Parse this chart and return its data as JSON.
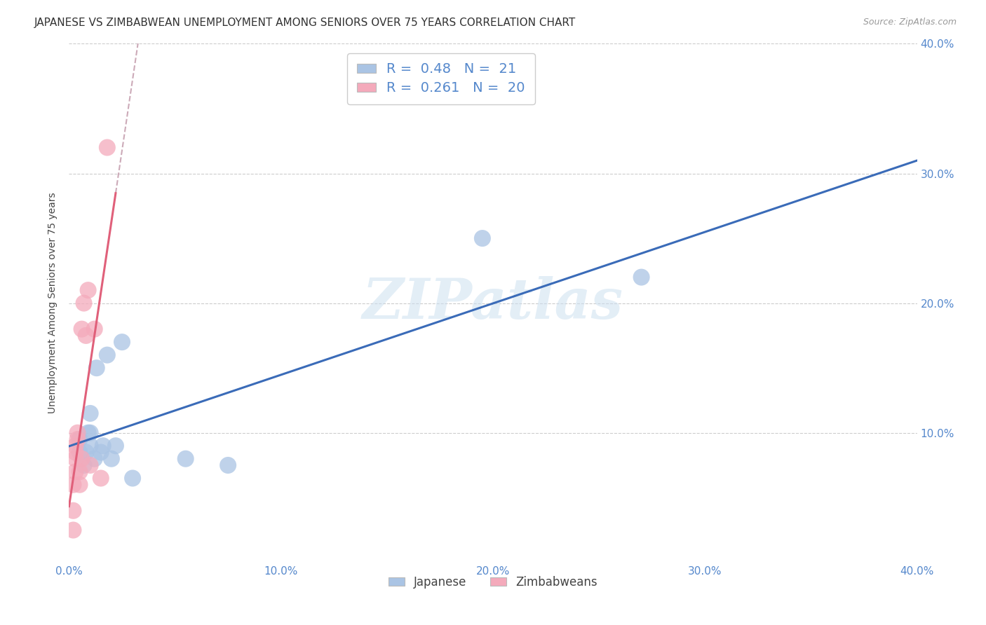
{
  "title": "JAPANESE VS ZIMBABWEAN UNEMPLOYMENT AMONG SENIORS OVER 75 YEARS CORRELATION CHART",
  "source": "Source: ZipAtlas.com",
  "xlabel_japanese": "Japanese",
  "xlabel_zimbabwean": "Zimbabweans",
  "ylabel": "Unemployment Among Seniors over 75 years",
  "xlim": [
    0.0,
    0.4
  ],
  "ylim": [
    0.0,
    0.4
  ],
  "xtick_vals": [
    0.0,
    0.1,
    0.2,
    0.3,
    0.4
  ],
  "xtick_labels": [
    "0.0%",
    "10.0%",
    "20.0%",
    "30.0%",
    "40.0%"
  ],
  "ytick_vals": [
    0.0,
    0.1,
    0.2,
    0.3,
    0.4
  ],
  "ytick_labels_right": [
    "",
    "10.0%",
    "20.0%",
    "30.0%",
    "40.0%"
  ],
  "japanese_R": 0.48,
  "japanese_N": 21,
  "zimbabwean_R": 0.261,
  "zimbabwean_N": 20,
  "japanese_color": "#aac4e4",
  "japanese_line_color": "#3a6bb8",
  "zimbabwean_color": "#f4aabb",
  "zimbabwean_line_color": "#e0607a",
  "zimbabwean_dashed_color": "#ccaab8",
  "japanese_x": [
    0.005,
    0.005,
    0.007,
    0.008,
    0.009,
    0.01,
    0.01,
    0.01,
    0.012,
    0.013,
    0.015,
    0.016,
    0.018,
    0.02,
    0.022,
    0.025,
    0.03,
    0.055,
    0.075,
    0.195,
    0.27
  ],
  "japanese_y": [
    0.085,
    0.095,
    0.075,
    0.085,
    0.1,
    0.09,
    0.1,
    0.115,
    0.08,
    0.15,
    0.085,
    0.09,
    0.16,
    0.08,
    0.09,
    0.17,
    0.065,
    0.08,
    0.075,
    0.25,
    0.22
  ],
  "zimbabwean_x": [
    0.002,
    0.002,
    0.002,
    0.003,
    0.003,
    0.003,
    0.003,
    0.004,
    0.004,
    0.005,
    0.005,
    0.006,
    0.006,
    0.007,
    0.008,
    0.009,
    0.01,
    0.012,
    0.015,
    0.018
  ],
  "zimbabwean_y": [
    0.025,
    0.04,
    0.06,
    0.07,
    0.08,
    0.085,
    0.09,
    0.095,
    0.1,
    0.06,
    0.07,
    0.08,
    0.18,
    0.2,
    0.175,
    0.21,
    0.075,
    0.18,
    0.065,
    0.32
  ]
}
